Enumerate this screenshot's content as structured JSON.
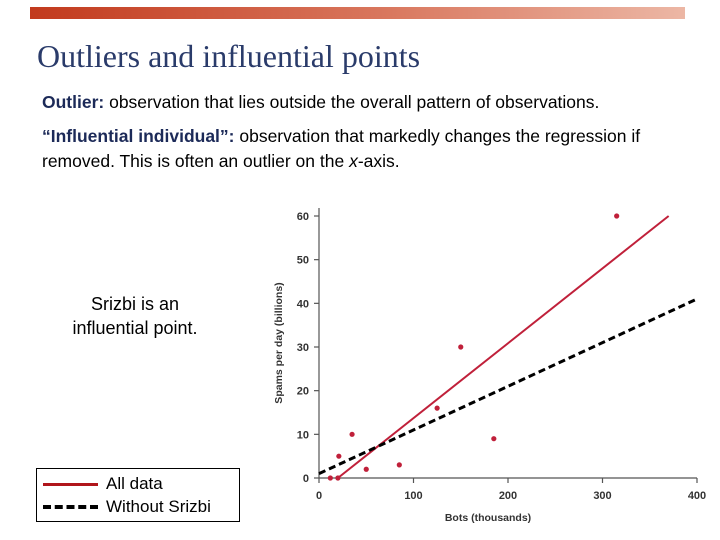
{
  "slide": {
    "title": "Outliers and influential points",
    "outlier_term": "Outlier:",
    "outlier_def": " observation that lies outside the overall pattern of observations.",
    "influential_term": "“Influential individual”:",
    "influential_def_a": " observation that markedly changes the regression if removed. This is often an outlier on the ",
    "influential_def_x": "x",
    "influential_def_b": "-axis.",
    "note": "Srizbi is an influential point."
  },
  "legend": {
    "all_data": "All data",
    "without": "Without Srizbi"
  },
  "colors": {
    "accent_bar": "#c23a1d",
    "title": "#2a3b6a",
    "term": "#1c2a58",
    "points": "#c0203a",
    "all_data_line": "#c0203a",
    "without_line": "#000000"
  },
  "chart_data": {
    "type": "scatter",
    "xlabel": "Bots (thousands)",
    "ylabel": "Spams per day (billions)",
    "xlim": [
      0,
      400
    ],
    "ylim": [
      0,
      60
    ],
    "xticks": [
      0,
      100,
      200,
      300,
      400
    ],
    "yticks": [
      0,
      10,
      20,
      30,
      40,
      50,
      60
    ],
    "grid": false,
    "points": [
      {
        "x": 12,
        "y": 0
      },
      {
        "x": 20,
        "y": 0
      },
      {
        "x": 21,
        "y": 5
      },
      {
        "x": 35,
        "y": 10
      },
      {
        "x": 50,
        "y": 2
      },
      {
        "x": 85,
        "y": 3
      },
      {
        "x": 125,
        "y": 16
      },
      {
        "x": 150,
        "y": 30
      },
      {
        "x": 185,
        "y": 9
      },
      {
        "x": 315,
        "y": 60
      }
    ],
    "series": [
      {
        "name": "All data",
        "style": "solid",
        "x": [
          20,
          370
        ],
        "y": [
          -1,
          60
        ]
      },
      {
        "name": "Without Srizbi",
        "style": "dashed",
        "x": [
          0,
          400
        ],
        "y": [
          1,
          41
        ]
      }
    ]
  }
}
